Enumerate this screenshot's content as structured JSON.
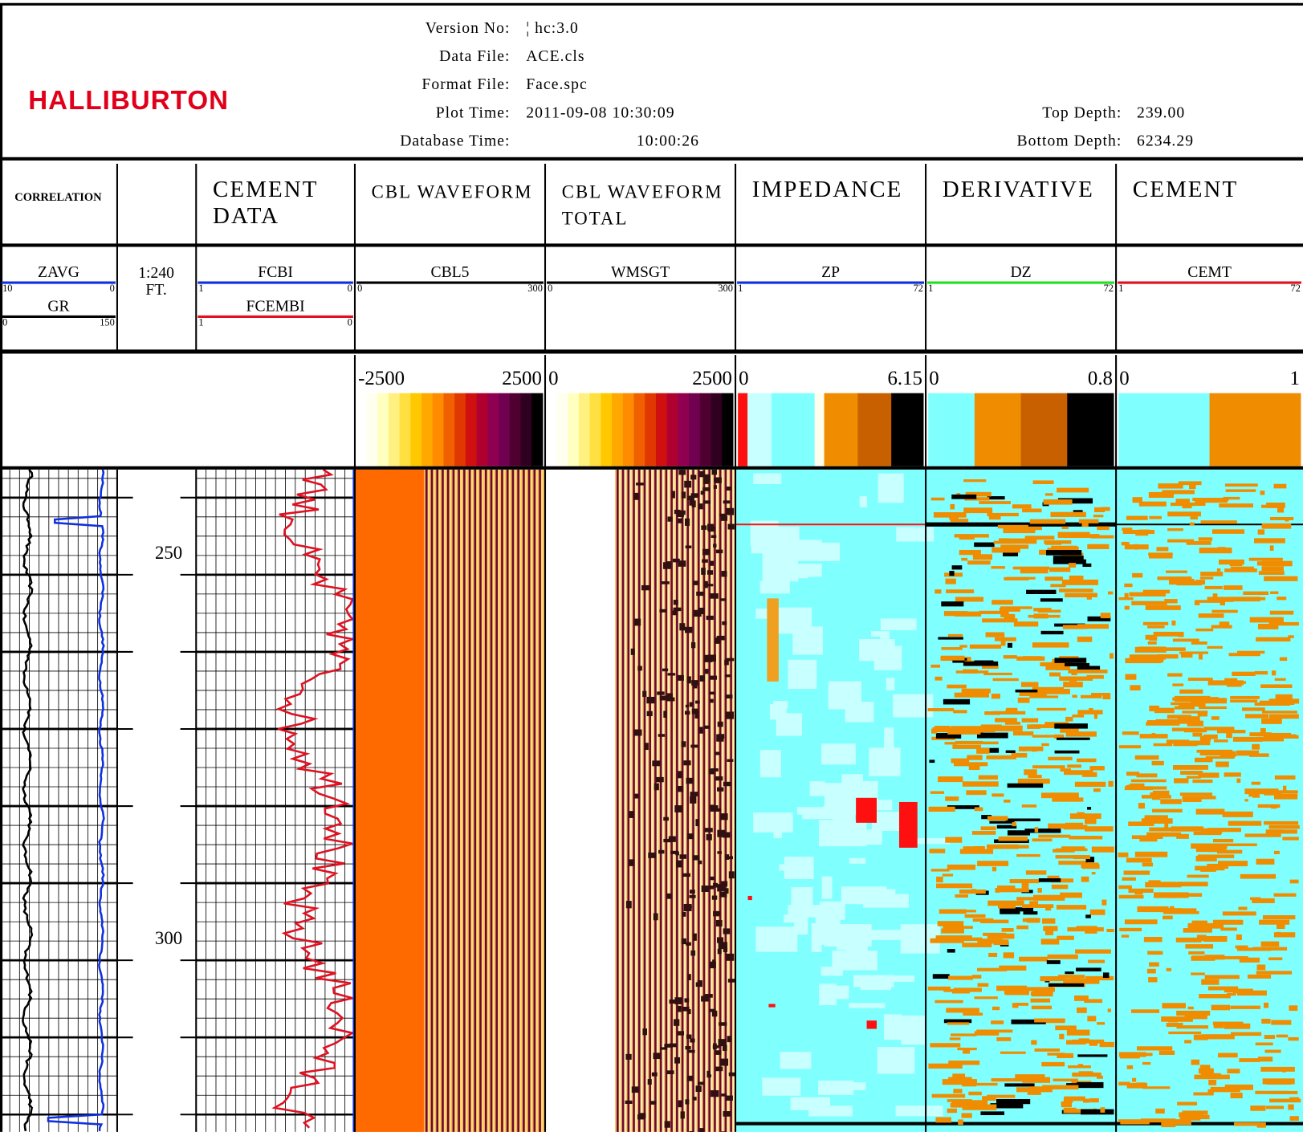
{
  "header": {
    "logo": "HALLIBURTON",
    "fields": [
      {
        "label": "Version No:",
        "value": "¦ hc:3.0"
      },
      {
        "label": "Data File:",
        "value": "ACE.cls"
      },
      {
        "label": "Format File:",
        "value": "Face.spc"
      },
      {
        "label": "Plot Time:",
        "value": "2011-09-08 10:30:09"
      },
      {
        "label": "Database Time:",
        "value": "10:00:26"
      }
    ],
    "depth_fields": [
      {
        "label": "Top Depth:",
        "value": "239.00"
      },
      {
        "label": "Bottom Depth:",
        "value": "6234.29"
      }
    ]
  },
  "tracks": [
    {
      "title": [
        "CORRELATION"
      ]
    },
    {
      "title": [
        "CEMENT",
        "DATA"
      ]
    },
    {
      "title": [
        "CBL WAVEFORM"
      ]
    },
    {
      "title": [
        "CBL WAVEFORM",
        "TOTAL"
      ]
    },
    {
      "title": [
        "IMPEDANCE"
      ]
    },
    {
      "title": [
        "DERIVATIVE"
      ]
    },
    {
      "title": [
        "CEMENT"
      ]
    }
  ],
  "curves": [
    {
      "name": "ZAVG",
      "left": 10,
      "right": 0,
      "color": "#1030e0"
    },
    {
      "name": "GR",
      "left": 0,
      "right": 150,
      "color": "#000000"
    },
    {
      "name": "FCBI",
      "left": 1,
      "right": 0,
      "color": "#1030e0"
    },
    {
      "name": "FCEMBI",
      "left": 1,
      "right": 0,
      "color": "#e01020"
    },
    {
      "name": "CBL5",
      "left": 0,
      "right": 300,
      "color": "#000000"
    },
    {
      "name": "WMSGT",
      "left": 0,
      "right": 300,
      "color": "#000000"
    },
    {
      "name": "ZP",
      "left": 1,
      "right": 72,
      "color": "#1030e0"
    },
    {
      "name": "DZ",
      "left": 1,
      "right": 72,
      "color": "#20e020"
    },
    {
      "name": "CEMT",
      "left": 1,
      "right": 72,
      "color": "#e01020"
    }
  ],
  "color_scales": [
    {
      "min": -2500,
      "max": 2500
    },
    {
      "min": 0,
      "max": 2500
    },
    {
      "min": 0,
      "max": 6.15
    },
    {
      "min": 0,
      "max": 0.8
    },
    {
      "min": 0,
      "max": 1
    }
  ],
  "depth": {
    "ratio": "1:240",
    "unit": "FT.",
    "labels": [
      250,
      300
    ]
  }
}
